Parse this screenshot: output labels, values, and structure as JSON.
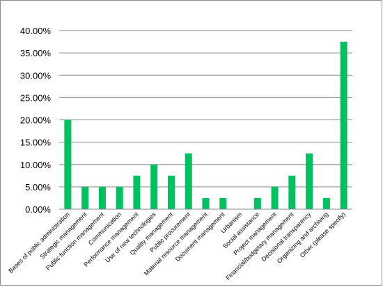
{
  "chart_data": {
    "type": "bar",
    "title": "",
    "xlabel": "",
    "ylabel": "",
    "ylim": [
      0,
      40
    ],
    "y_tick_step": 5,
    "y_tick_labels": [
      "0.00%",
      "5.00%",
      "10.00%",
      "15.00%",
      "20.00%",
      "25.00%",
      "30.00%",
      "35.00%",
      "40.00%"
    ],
    "grid": "horizontal",
    "legend": "none",
    "bar_color": "#00c060",
    "categories": [
      "Bases of public administration",
      "Strategic management",
      "Public function management",
      "Communication",
      "Performance management",
      "Use of new technologies",
      "Quality management",
      "Public procurement",
      "Material resource management",
      "Document management",
      "Urbanism",
      "Social assistance",
      "Project management",
      "Financial/budgetary management",
      "Decisional transparency",
      "Organizing and archiving",
      "Other (please specify)"
    ],
    "values": [
      20,
      5,
      5,
      5,
      7.5,
      10,
      7.5,
      12.5,
      2.5,
      2.5,
      0,
      2.5,
      5,
      7.5,
      12.5,
      2.5,
      37.5
    ]
  }
}
